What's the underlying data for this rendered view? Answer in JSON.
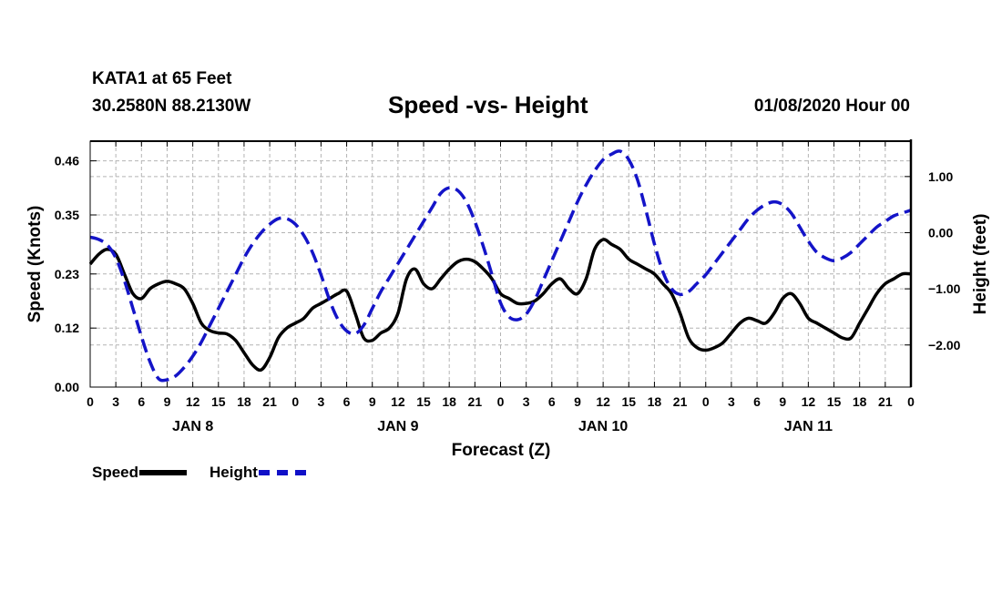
{
  "header": {
    "station": "KATA1 at 65 Feet",
    "coords": "30.2580N 88.2130W",
    "title": "Speed -vs- Height",
    "datetime": "01/08/2020 Hour 00"
  },
  "legend": {
    "speed_label": "Speed",
    "height_label": "Height"
  },
  "colors": {
    "speed": "#000000",
    "height": "#1414c8",
    "grid": "#b4b4b4"
  },
  "chart_data": {
    "type": "line",
    "title": "Speed -vs- Height",
    "xlabel": "Forecast (Z)",
    "ylabel": "Speed (Knots)",
    "y2label": "Height (feet)",
    "x_unit": "forecast hour",
    "xlim": [
      0,
      96
    ],
    "ylim": [
      0,
      0.5
    ],
    "y2lim": [
      -2.75,
      1.63
    ],
    "x_ticks": [
      0,
      3,
      6,
      9,
      12,
      15,
      18,
      21,
      24,
      27,
      30,
      33,
      36,
      39,
      42,
      45,
      48,
      51,
      54,
      57,
      60,
      63,
      66,
      69,
      72,
      75,
      78,
      81,
      84,
      87,
      90,
      93,
      96
    ],
    "x_tick_labels": [
      "0",
      "3",
      "6",
      "9",
      "12",
      "15",
      "18",
      "21",
      "0",
      "3",
      "6",
      "9",
      "12",
      "15",
      "18",
      "21",
      "0",
      "3",
      "6",
      "9",
      "12",
      "15",
      "18",
      "21",
      "0",
      "3",
      "6",
      "9",
      "12",
      "15",
      "18",
      "21",
      "0"
    ],
    "day_labels": [
      {
        "label": "JAN 8",
        "x": 12
      },
      {
        "label": "JAN 9",
        "x": 36
      },
      {
        "label": "JAN 10",
        "x": 60
      },
      {
        "label": "JAN 11",
        "x": 84
      }
    ],
    "y_ticks": [
      0.0,
      0.12,
      0.23,
      0.35,
      0.46
    ],
    "y_tick_labels": [
      "0.00",
      "0.12",
      "0.23",
      "0.35",
      "0.46"
    ],
    "y2_ticks": [
      1.0,
      0.0,
      -1.0,
      -2.0
    ],
    "y2_tick_labels": [
      "1.00",
      "0.00",
      "−1.00",
      "−2.00"
    ],
    "grid": true,
    "series": [
      {
        "name": "Speed",
        "axis": "left",
        "style": "solid",
        "x": [
          0,
          1,
          2,
          3,
          4,
          5,
          6,
          7,
          8,
          9,
          10,
          11,
          12,
          13,
          14,
          15,
          16,
          17,
          18,
          19,
          20,
          21,
          22,
          23,
          24,
          25,
          26,
          27,
          28,
          29,
          30,
          31,
          32,
          33,
          34,
          35,
          36,
          37,
          38,
          39,
          40,
          41,
          42,
          43,
          44,
          45,
          46,
          47,
          48,
          49,
          50,
          51,
          52,
          53,
          54,
          55,
          56,
          57,
          58,
          59,
          60,
          61,
          62,
          63,
          64,
          65,
          66,
          67,
          68,
          69,
          70,
          71,
          72,
          73,
          74,
          75,
          76,
          77,
          78,
          79,
          80,
          81,
          82,
          83,
          84,
          85,
          86,
          87,
          88,
          89,
          90,
          91,
          92,
          93,
          94,
          95,
          96
        ],
        "values": [
          0.25,
          0.27,
          0.28,
          0.27,
          0.23,
          0.19,
          0.18,
          0.2,
          0.21,
          0.215,
          0.21,
          0.2,
          0.17,
          0.13,
          0.115,
          0.11,
          0.108,
          0.095,
          0.07,
          0.045,
          0.035,
          0.06,
          0.1,
          0.12,
          0.13,
          0.14,
          0.16,
          0.17,
          0.18,
          0.19,
          0.195,
          0.15,
          0.1,
          0.095,
          0.11,
          0.12,
          0.15,
          0.22,
          0.24,
          0.21,
          0.2,
          0.22,
          0.24,
          0.255,
          0.26,
          0.255,
          0.24,
          0.22,
          0.19,
          0.18,
          0.17,
          0.17,
          0.175,
          0.19,
          0.21,
          0.22,
          0.2,
          0.19,
          0.22,
          0.28,
          0.3,
          0.29,
          0.28,
          0.26,
          0.25,
          0.24,
          0.23,
          0.21,
          0.19,
          0.15,
          0.1,
          0.08,
          0.075,
          0.08,
          0.09,
          0.11,
          0.13,
          0.14,
          0.135,
          0.13,
          0.15,
          0.18,
          0.19,
          0.17,
          0.14,
          0.13,
          0.12,
          0.11,
          0.1,
          0.1,
          0.13,
          0.16,
          0.19,
          0.21,
          0.22,
          0.23,
          0.23
        ]
      },
      {
        "name": "Height",
        "axis": "right",
        "style": "dashed",
        "x": [
          0,
          1,
          2,
          3,
          4,
          5,
          6,
          7,
          8,
          9,
          10,
          11,
          12,
          13,
          14,
          15,
          16,
          17,
          18,
          19,
          20,
          21,
          22,
          23,
          24,
          25,
          26,
          27,
          28,
          29,
          30,
          31,
          32,
          33,
          34,
          35,
          36,
          37,
          38,
          39,
          40,
          41,
          42,
          43,
          44,
          45,
          46,
          47,
          48,
          49,
          50,
          51,
          52,
          53,
          54,
          55,
          56,
          57,
          58,
          59,
          60,
          61,
          62,
          63,
          64,
          65,
          66,
          67,
          68,
          69,
          70,
          71,
          72,
          73,
          74,
          75,
          76,
          77,
          78,
          79,
          80,
          81,
          82,
          83,
          84,
          85,
          86,
          87,
          88,
          89,
          90,
          91,
          92,
          93,
          94,
          95,
          96
        ],
        "values": [
          -0.08,
          -0.12,
          -0.22,
          -0.45,
          -0.85,
          -1.35,
          -1.85,
          -2.3,
          -2.6,
          -2.62,
          -2.55,
          -2.4,
          -2.2,
          -1.95,
          -1.65,
          -1.35,
          -1.05,
          -0.75,
          -0.45,
          -0.2,
          0.0,
          0.15,
          0.25,
          0.25,
          0.15,
          -0.05,
          -0.35,
          -0.75,
          -1.2,
          -1.55,
          -1.75,
          -1.8,
          -1.65,
          -1.35,
          -1.05,
          -0.8,
          -0.55,
          -0.3,
          -0.05,
          0.2,
          0.45,
          0.7,
          0.8,
          0.75,
          0.55,
          0.2,
          -0.25,
          -0.75,
          -1.25,
          -1.5,
          -1.55,
          -1.45,
          -1.2,
          -0.85,
          -0.5,
          -0.15,
          0.2,
          0.55,
          0.85,
          1.1,
          1.3,
          1.4,
          1.45,
          1.3,
          0.95,
          0.4,
          -0.2,
          -0.7,
          -1.0,
          -1.1,
          -1.05,
          -0.9,
          -0.75,
          -0.55,
          -0.35,
          -0.15,
          0.05,
          0.25,
          0.4,
          0.5,
          0.55,
          0.5,
          0.35,
          0.1,
          -0.15,
          -0.35,
          -0.45,
          -0.5,
          -0.45,
          -0.35,
          -0.2,
          -0.05,
          0.1,
          0.2,
          0.3,
          0.35,
          0.4
        ]
      }
    ]
  }
}
